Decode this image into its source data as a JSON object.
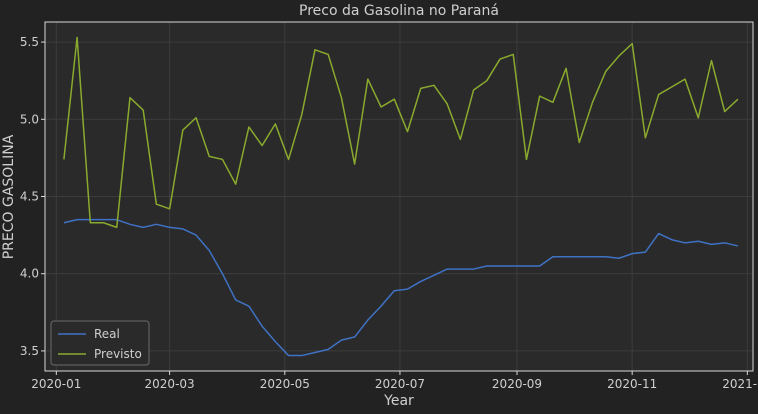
{
  "chart_data": {
    "type": "line",
    "title": "Preco da Gasolina no Paraná",
    "xlabel": "Year",
    "ylabel": "PRECO GASOLINA",
    "xlim": [
      "2019-12-26",
      "2021-01-04"
    ],
    "ylim": [
      3.37,
      5.63
    ],
    "x_ticks": [
      "2020-01-01",
      "2020-03-01",
      "2020-05-01",
      "2020-07-01",
      "2020-09-01",
      "2020-11-01",
      "2021-01-01"
    ],
    "x_tick_labels": [
      "2020-01",
      "2020-03",
      "2020-05",
      "2020-07",
      "2020-09",
      "2020-11",
      "2021-01"
    ],
    "y_ticks": [
      3.5,
      4.0,
      4.5,
      5.0,
      5.5
    ],
    "y_tick_labels": [
      "3.5",
      "4.0",
      "4.5",
      "5.0",
      "5.5"
    ],
    "grid": true,
    "legend_position": "lower-left",
    "colors": {
      "background": "#222222",
      "plot_background": "#2a2a2a",
      "grid": "#3c3c3c",
      "frame": "#d8d8d8",
      "Real": "#3f72c4",
      "Previsto": "#8aaa2e"
    },
    "x": [
      "2020-01-05",
      "2020-01-12",
      "2020-01-19",
      "2020-01-26",
      "2020-02-02",
      "2020-02-09",
      "2020-02-16",
      "2020-02-23",
      "2020-03-01",
      "2020-03-08",
      "2020-03-15",
      "2020-03-22",
      "2020-03-29",
      "2020-04-05",
      "2020-04-12",
      "2020-04-19",
      "2020-04-26",
      "2020-05-03",
      "2020-05-10",
      "2020-05-17",
      "2020-05-24",
      "2020-05-31",
      "2020-06-07",
      "2020-06-14",
      "2020-06-21",
      "2020-06-28",
      "2020-07-05",
      "2020-07-12",
      "2020-07-19",
      "2020-07-26",
      "2020-08-02",
      "2020-08-09",
      "2020-08-16",
      "2020-08-23",
      "2020-08-30",
      "2020-09-06",
      "2020-09-13",
      "2020-09-20",
      "2020-09-27",
      "2020-10-04",
      "2020-10-11",
      "2020-10-18",
      "2020-10-25",
      "2020-11-01",
      "2020-11-08",
      "2020-11-15",
      "2020-11-22",
      "2020-11-29",
      "2020-12-06",
      "2020-12-13",
      "2020-12-20",
      "2020-12-27"
    ],
    "series": [
      {
        "name": "Real",
        "values": [
          4.33,
          4.35,
          4.35,
          4.35,
          4.35,
          4.32,
          4.3,
          4.32,
          4.3,
          4.29,
          4.25,
          4.15,
          4.0,
          3.83,
          3.79,
          3.66,
          3.56,
          3.47,
          3.47,
          3.49,
          3.51,
          3.57,
          3.59,
          3.7,
          3.79,
          3.89,
          3.9,
          3.95,
          3.99,
          4.03,
          4.03,
          4.03,
          4.05,
          4.05,
          4.05,
          4.05,
          4.05,
          4.11,
          4.11,
          4.11,
          4.11,
          4.11,
          4.1,
          4.13,
          4.14,
          4.26,
          4.22,
          4.2,
          4.21,
          4.19,
          4.2,
          4.18
        ]
      },
      {
        "name": "Previsto",
        "values": [
          4.74,
          5.53,
          4.33,
          4.33,
          4.3,
          5.14,
          5.06,
          4.45,
          4.42,
          4.93,
          5.01,
          4.76,
          4.74,
          4.58,
          4.95,
          4.83,
          4.97,
          4.74,
          5.03,
          5.45,
          5.42,
          5.14,
          4.71,
          5.26,
          5.08,
          5.13,
          4.92,
          5.2,
          5.22,
          5.1,
          4.87,
          5.19,
          5.25,
          5.39,
          5.42,
          4.74,
          5.15,
          5.11,
          5.33,
          4.85,
          5.11,
          5.31,
          5.41,
          5.49,
          4.88,
          5.16,
          5.21,
          5.26,
          5.01,
          5.38,
          5.05,
          5.13
        ]
      }
    ]
  }
}
